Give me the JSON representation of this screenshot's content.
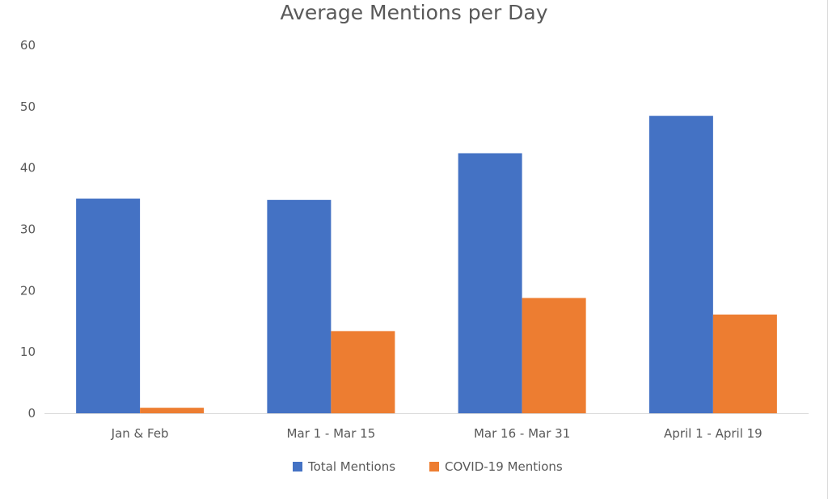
{
  "chart_data": {
    "type": "bar",
    "title": "Average Mentions per Day",
    "xlabel": "",
    "ylabel": "",
    "categories": [
      "Jan & Feb",
      "Mar 1 - Mar 15",
      "Mar 16 - Mar 31",
      "April 1 - April 19"
    ],
    "series": [
      {
        "name": "Total Mentions",
        "color": "#4472c4",
        "values": [
          35,
          34.8,
          42.4,
          48.5
        ]
      },
      {
        "name": "COVID-19 Mentions",
        "color": "#ed7d31",
        "values": [
          0.9,
          13.4,
          18.8,
          16.1
        ]
      }
    ],
    "ylim": [
      0,
      60
    ],
    "yticks": [
      "0",
      "10",
      "20",
      "30",
      "40",
      "50",
      "60"
    ],
    "grid": false,
    "legend": "bottom"
  }
}
